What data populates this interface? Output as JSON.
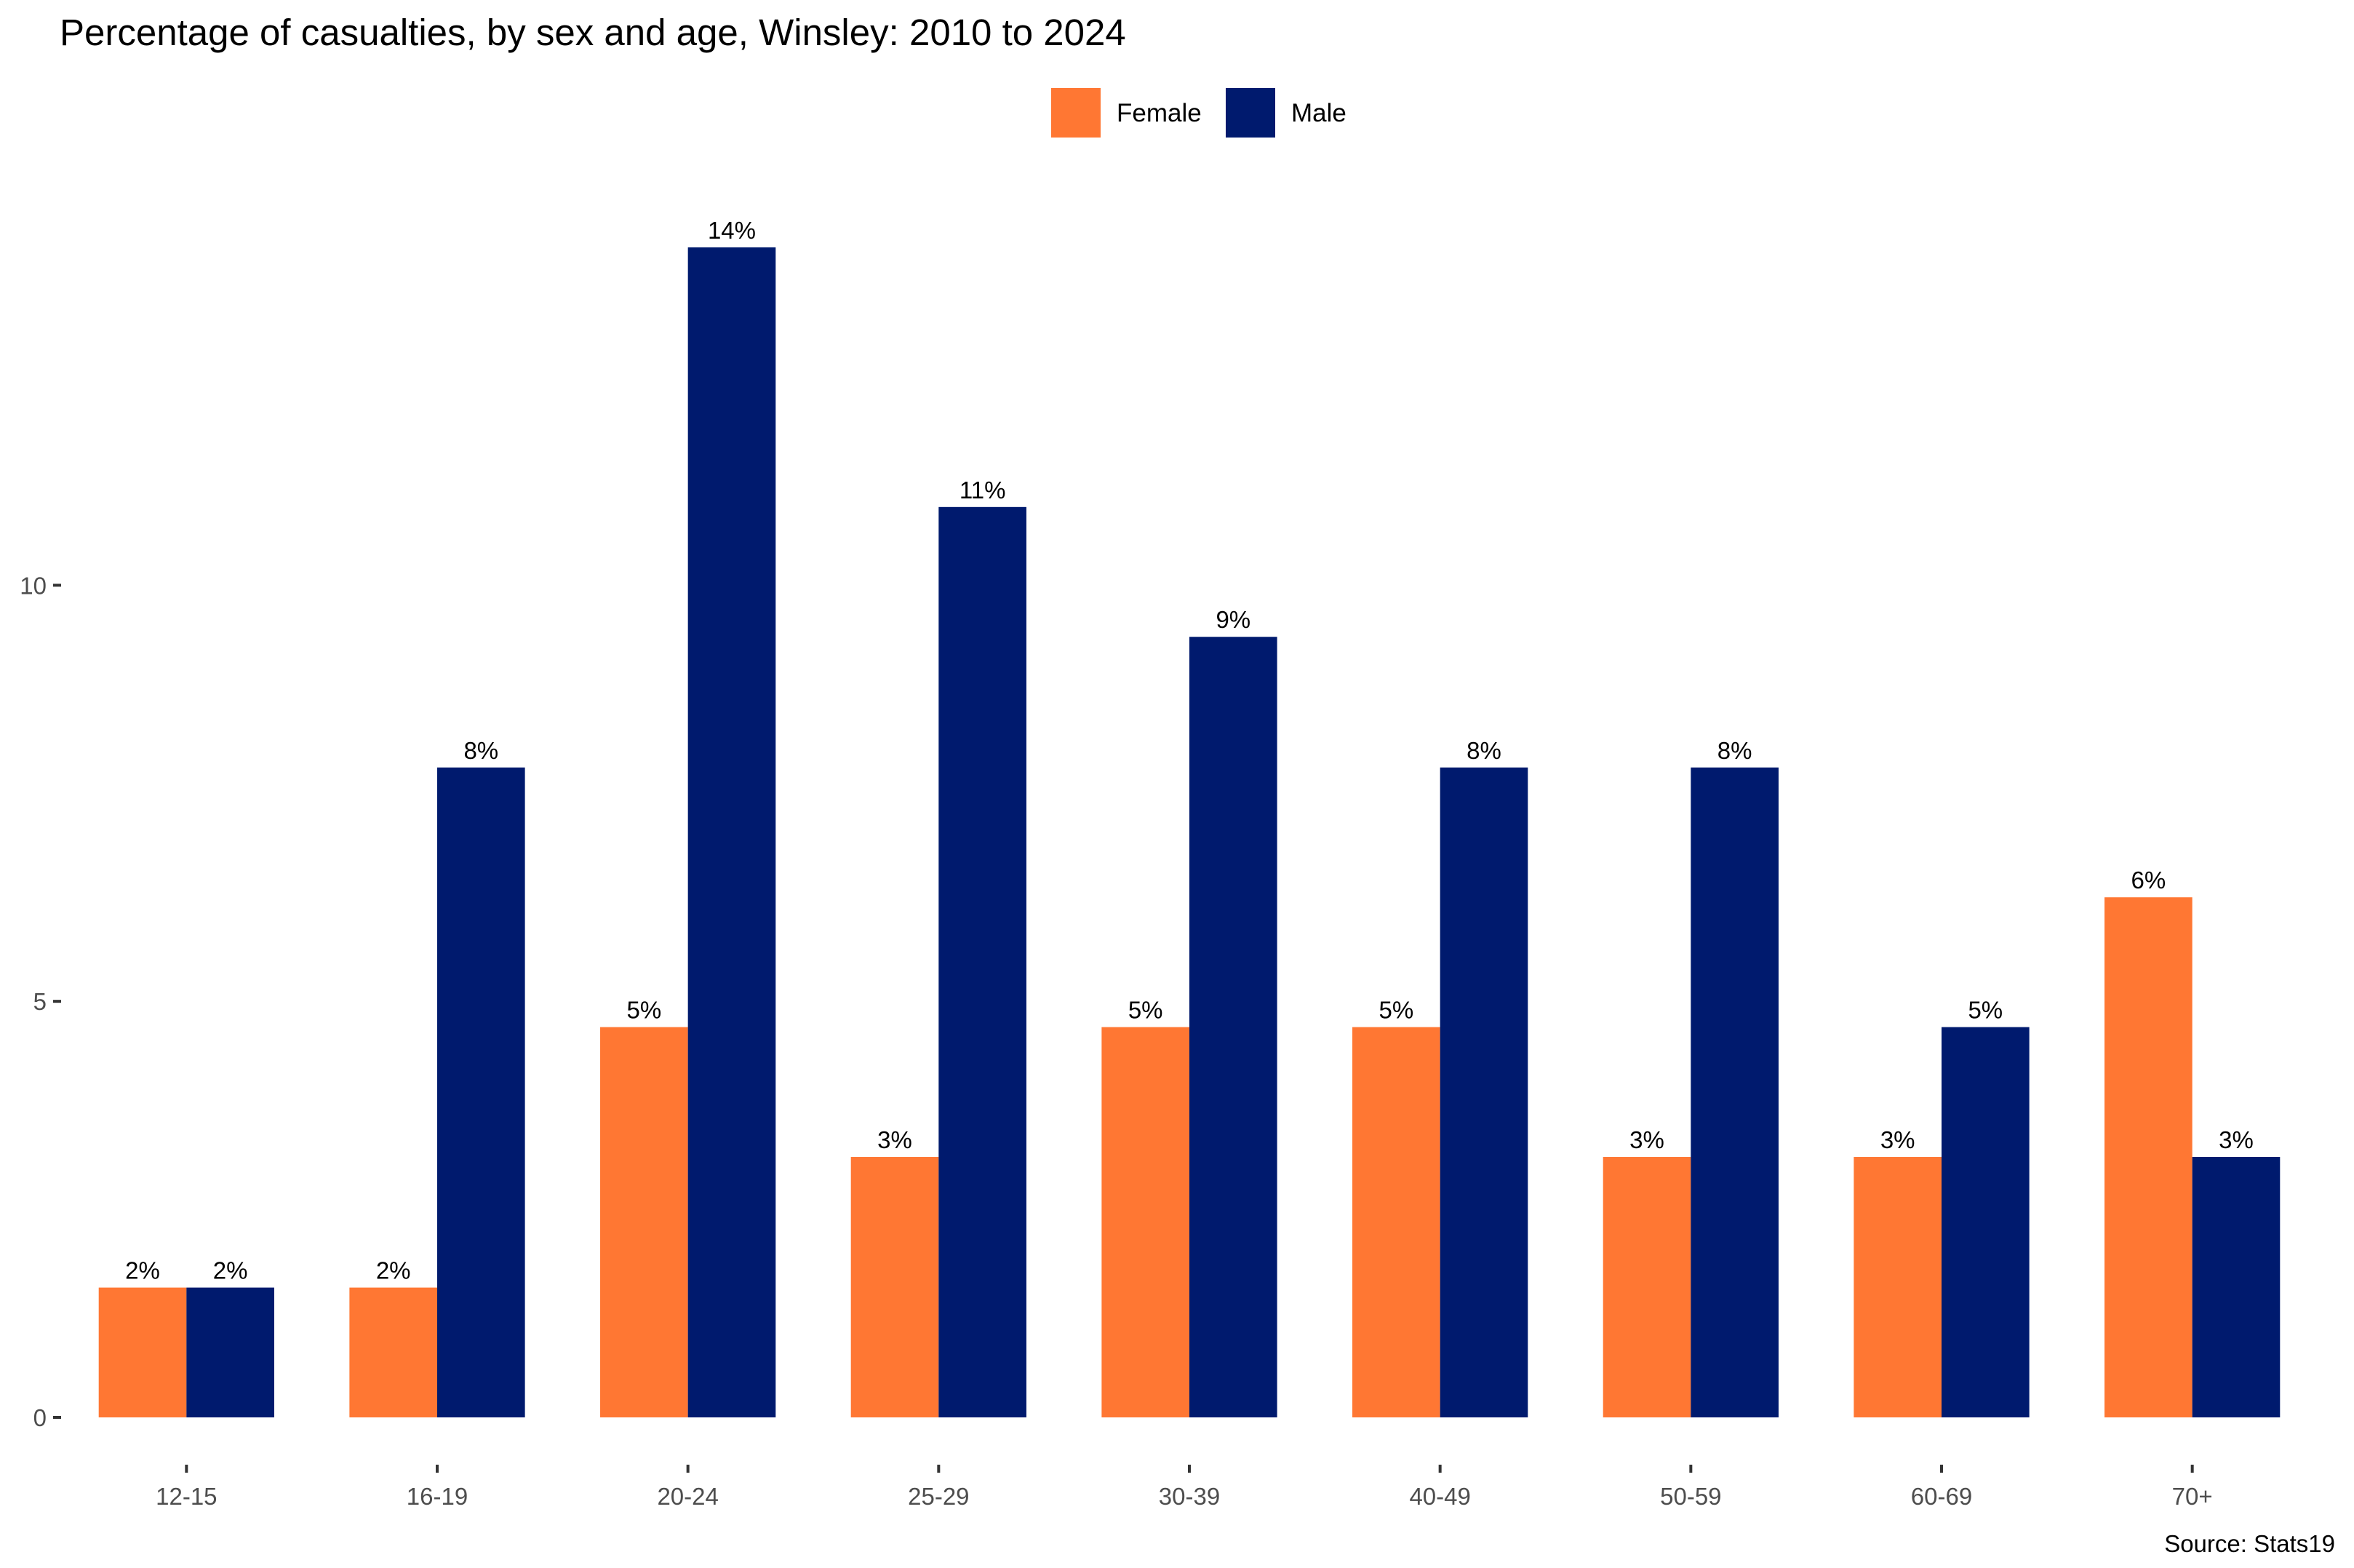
{
  "chart_data": {
    "type": "bar",
    "title": "Percentage of casualties, by sex and age, Winsley: 2010 to 2024",
    "caption": "Source: Stats19",
    "xlabel": "",
    "ylabel": "",
    "categories": [
      "12-15",
      "16-19",
      "20-24",
      "25-29",
      "30-39",
      "40-49",
      "50-59",
      "60-69",
      "70+"
    ],
    "series": [
      {
        "name": "Female",
        "color": "#FF7733",
        "values": [
          1.56,
          1.56,
          4.69,
          3.13,
          4.69,
          4.69,
          3.13,
          3.13,
          6.25
        ],
        "labels": [
          "2%",
          "2%",
          "5%",
          "3%",
          "5%",
          "5%",
          "3%",
          "3%",
          "6%"
        ]
      },
      {
        "name": "Male",
        "color": "#001A6E",
        "values": [
          1.56,
          7.81,
          14.06,
          10.94,
          9.38,
          7.81,
          7.81,
          4.69,
          3.13
        ],
        "labels": [
          "2%",
          "8%",
          "14%",
          "11%",
          "9%",
          "8%",
          "8%",
          "5%",
          "3%"
        ]
      }
    ],
    "yticks": [
      0,
      5,
      10
    ],
    "ytick_labels": [
      "0",
      "5",
      "10"
    ],
    "ylim": [
      0,
      14.06
    ],
    "grid": false,
    "legend_position": "top"
  }
}
